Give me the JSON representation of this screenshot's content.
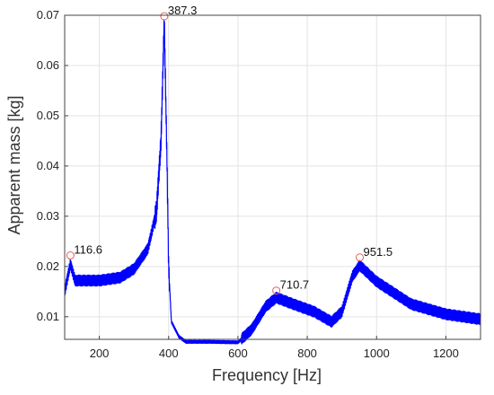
{
  "chart_data": {
    "type": "line",
    "title": "",
    "xlabel": "Frequency [Hz]",
    "ylabel": "Apparent mass [kg]",
    "xlim": [
      100,
      1300
    ],
    "ylim": [
      0.0055,
      0.07
    ],
    "x_ticks": [
      200,
      400,
      600,
      800,
      1000,
      1200
    ],
    "y_ticks": [
      0.01,
      0.02,
      0.03,
      0.04,
      0.05,
      0.06,
      0.07
    ],
    "grid": true,
    "series": [
      {
        "color": "#0000ff",
        "style": "noisy-band",
        "points": [
          {
            "x": 100,
            "y": 0.015
          },
          {
            "x": 116.6,
            "y": 0.0205
          },
          {
            "x": 130,
            "y": 0.0172
          },
          {
            "x": 200,
            "y": 0.0172
          },
          {
            "x": 260,
            "y": 0.0178
          },
          {
            "x": 300,
            "y": 0.0195
          },
          {
            "x": 340,
            "y": 0.0235
          },
          {
            "x": 365,
            "y": 0.031
          },
          {
            "x": 378,
            "y": 0.045
          },
          {
            "x": 387.3,
            "y": 0.069
          },
          {
            "x": 395,
            "y": 0.042
          },
          {
            "x": 400,
            "y": 0.02
          },
          {
            "x": 408,
            "y": 0.009
          },
          {
            "x": 430,
            "y": 0.006
          },
          {
            "x": 450,
            "y": 0.005
          },
          {
            "x": 520,
            "y": 0.005
          },
          {
            "x": 600,
            "y": 0.0049
          },
          {
            "x": 640,
            "y": 0.0075
          },
          {
            "x": 680,
            "y": 0.012
          },
          {
            "x": 710.7,
            "y": 0.0138
          },
          {
            "x": 760,
            "y": 0.0125
          },
          {
            "x": 820,
            "y": 0.011
          },
          {
            "x": 870,
            "y": 0.009
          },
          {
            "x": 900,
            "y": 0.011
          },
          {
            "x": 930,
            "y": 0.018
          },
          {
            "x": 951.5,
            "y": 0.0202
          },
          {
            "x": 1000,
            "y": 0.017
          },
          {
            "x": 1100,
            "y": 0.0125
          },
          {
            "x": 1200,
            "y": 0.0105
          },
          {
            "x": 1300,
            "y": 0.0095
          }
        ]
      }
    ],
    "peaks": [
      {
        "x": 116.6,
        "y": 0.0222,
        "label": "116.6"
      },
      {
        "x": 387.3,
        "y": 0.0698,
        "label": "387.3"
      },
      {
        "x": 710.7,
        "y": 0.0152,
        "label": "710.7"
      },
      {
        "x": 951.5,
        "y": 0.0218,
        "label": "951.5"
      }
    ]
  }
}
